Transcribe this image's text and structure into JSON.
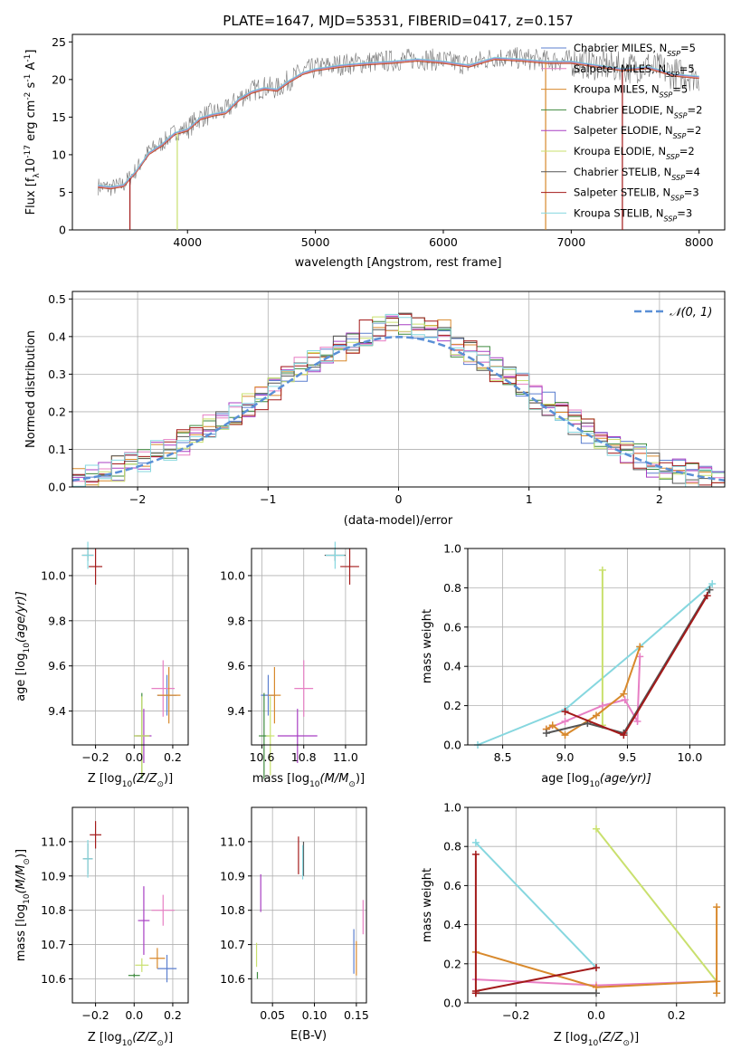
{
  "figure": {
    "title": "PLATE=1647, MJD=53531, FIBERID=0417, z=0.157"
  },
  "series_styles": [
    {
      "key": "cmiles",
      "color": "#5b7fcf"
    },
    {
      "key": "smiles",
      "color": "#e77fc4"
    },
    {
      "key": "kmiles",
      "color": "#d8892c"
    },
    {
      "key": "celodie",
      "color": "#3e8a3e"
    },
    {
      "key": "selodie",
      "color": "#a83fc3"
    },
    {
      "key": "kelodie",
      "color": "#c9e06e"
    },
    {
      "key": "cstelib",
      "color": "#555555"
    },
    {
      "key": "sstelib",
      "color": "#a31a1a"
    },
    {
      "key": "kstelib",
      "color": "#86d7df"
    }
  ],
  "chart_data": [
    {
      "id": "spectrum",
      "type": "line",
      "xlabel": "wavelength [Angstrom, rest frame]",
      "ylabel_main": "Flux [f",
      "ylabel_unit": "10",
      "ylabel_exp": "-17",
      "ylabel_rest": " erg cm",
      "ylabel_exp2": "-2",
      "ylabel_rest2": " s",
      "ylabel_exp3": "-1",
      "ylabel_rest3": " A",
      "ylabel_exp4": "-1",
      "ylabel_end": "]",
      "xlim": [
        3100,
        8200
      ],
      "ylim": [
        0,
        26
      ],
      "xticks": [
        "4000",
        "5000",
        "6000",
        "7000",
        "8000"
      ],
      "yticks": [
        "0",
        "5",
        "10",
        "15",
        "20",
        "25"
      ],
      "x": [
        3300,
        3400,
        3500,
        3600,
        3700,
        3800,
        3900,
        4000,
        4100,
        4200,
        4300,
        4400,
        4500,
        4600,
        4700,
        4800,
        4900,
        5000,
        5200,
        5400,
        5600,
        5800,
        6000,
        6200,
        6400,
        6600,
        6800,
        7000,
        7200,
        7400,
        7600,
        7800,
        8000
      ],
      "data_flux": [
        5.8,
        5.6,
        6.0,
        8.0,
        10.5,
        11.5,
        13.0,
        13.5,
        15.0,
        15.5,
        15.8,
        17.5,
        18.5,
        19.0,
        18.8,
        20.0,
        21.0,
        21.5,
        22.0,
        22.3,
        22.5,
        22.8,
        22.5,
        22.0,
        23.0,
        22.8,
        22.5,
        22.5,
        22.0,
        21.5,
        21.8,
        20.8,
        20.5
      ],
      "model_flux": [
        5.8,
        5.6,
        5.9,
        7.8,
        10.2,
        11.3,
        12.8,
        13.3,
        14.8,
        15.3,
        15.6,
        17.3,
        18.3,
        18.8,
        18.6,
        19.8,
        20.8,
        21.3,
        21.8,
        22.1,
        22.3,
        22.6,
        22.3,
        21.8,
        22.8,
        22.6,
        22.3,
        22.3,
        21.8,
        21.3,
        21.6,
        20.6,
        20.3
      ],
      "legend": [
        {
          "key": "cmiles",
          "name": "Chabrier MILES, N",
          "sub": "SSP",
          "suffix": "=5"
        },
        {
          "key": "smiles",
          "name": "Salpeter MILES, N",
          "sub": "SSP",
          "suffix": "=5"
        },
        {
          "key": "kmiles",
          "name": "Kroupa MILES, N",
          "sub": "SSP",
          "suffix": "=5"
        },
        {
          "key": "celodie",
          "name": "Chabrier ELODIE, N",
          "sub": "SSP",
          "suffix": "=2"
        },
        {
          "key": "selodie",
          "name": "Salpeter ELODIE, N",
          "sub": "SSP",
          "suffix": "=2"
        },
        {
          "key": "kelodie",
          "name": "Kroupa ELODIE, N",
          "sub": "SSP",
          "suffix": "=2"
        },
        {
          "key": "cstelib",
          "name": "Chabrier STELIB, N",
          "sub": "SSP",
          "suffix": "=4"
        },
        {
          "key": "sstelib",
          "name": "Salpeter STELIB, N",
          "sub": "SSP",
          "suffix": "=3"
        },
        {
          "key": "kstelib",
          "name": "Kroupa STELIB, N",
          "sub": "SSP",
          "suffix": "=3"
        }
      ],
      "drops": [
        {
          "x": 3550,
          "key": "sstelib"
        },
        {
          "x": 3920,
          "key": "kelodie"
        },
        {
          "x": 6800,
          "key": "kmiles"
        },
        {
          "x": 7400,
          "key": "sstelib"
        }
      ]
    },
    {
      "id": "residuals",
      "type": "area",
      "xlabel": "(data-model)/error",
      "ylabel": "Normed distribution",
      "xlim": [
        -2.5,
        2.5
      ],
      "ylim": [
        0,
        0.52
      ],
      "xticks": [
        "−2",
        "−1",
        "0",
        "1",
        "2"
      ],
      "yticks": [
        "0.0",
        "0.1",
        "0.2",
        "0.3",
        "0.4",
        "0.5"
      ],
      "legend_label": "𝒩(0, 1)",
      "bin_width": 0.1,
      "hist_base": [
        0.02,
        0.03,
        0.04,
        0.05,
        0.06,
        0.07,
        0.09,
        0.1,
        0.12,
        0.14,
        0.16,
        0.18,
        0.2,
        0.22,
        0.24,
        0.26,
        0.29,
        0.31,
        0.33,
        0.35,
        0.37,
        0.39,
        0.41,
        0.42,
        0.43,
        0.44,
        0.43,
        0.42,
        0.41,
        0.38,
        0.36,
        0.34,
        0.31,
        0.29,
        0.27,
        0.24,
        0.22,
        0.19,
        0.17,
        0.15,
        0.13,
        0.11,
        0.09,
        0.08,
        0.06,
        0.05,
        0.04,
        0.03,
        0.02,
        0.02
      ]
    },
    {
      "id": "age_vs_Z",
      "type": "scatter",
      "xlabel": "Z [log",
      "xlabel_sub": "10",
      "xlabel_mid": "(Z/Z",
      "xlabel_sub2": "⊙",
      "xlabel_end": ")]",
      "ylabel": "age  [log",
      "ylabel_sub": "10",
      "ylabel_end": "(age/yr)]",
      "xlim": [
        -0.32,
        0.28
      ],
      "ylim": [
        9.25,
        10.12
      ],
      "xticks": [
        "−0.2",
        "0.0",
        "0.2"
      ],
      "yticks": [
        "9.4",
        "9.6",
        "9.8",
        "10.0"
      ],
      "points": [
        {
          "key": "cmiles",
          "x": 0.17,
          "y": 9.47,
          "xerr": 0.1,
          "yerr": 0.18
        },
        {
          "key": "smiles",
          "x": 0.15,
          "y": 9.5,
          "xerr": 0.12,
          "yerr": 0.25
        },
        {
          "key": "kmiles",
          "x": 0.18,
          "y": 9.47,
          "xerr": 0.12,
          "yerr": 0.25
        },
        {
          "key": "celodie",
          "x": 0.04,
          "y": 9.29,
          "xerr": 0.08,
          "yerr": 0.38
        },
        {
          "key": "selodie",
          "x": 0.05,
          "y": 9.29,
          "xerr": 0.08,
          "yerr": 0.24
        },
        {
          "key": "kelodie",
          "x": 0.04,
          "y": 9.29,
          "xerr": 0.08,
          "yerr": 0.35
        },
        {
          "key": "cstelib",
          "x": -0.24,
          "y": 10.09,
          "xerr": 0.06,
          "yerr": 0.05
        },
        {
          "key": "sstelib",
          "x": -0.2,
          "y": 10.04,
          "xerr": 0.07,
          "yerr": 0.16
        },
        {
          "key": "kstelib",
          "x": -0.24,
          "y": 10.09,
          "xerr": 0.06,
          "yerr": 0.12
        }
      ]
    },
    {
      "id": "age_vs_mass",
      "type": "scatter",
      "xlabel": "mass [log",
      "xlabel_sub": "10",
      "xlabel_mid": "(M/M",
      "xlabel_sub2": "⊙",
      "xlabel_end": ")]",
      "xlim": [
        10.55,
        11.1
      ],
      "ylim": [
        9.25,
        10.12
      ],
      "xticks": [
        "10.6",
        "10.8",
        "11.0"
      ],
      "yticks": [
        "9.4",
        "9.6",
        "9.8",
        "10.0"
      ],
      "points": [
        {
          "key": "cmiles",
          "x": 10.63,
          "y": 9.47,
          "xerr": 0.07,
          "yerr": 0.18
        },
        {
          "key": "smiles",
          "x": 10.8,
          "y": 9.5,
          "xerr": 0.09,
          "yerr": 0.25
        },
        {
          "key": "kmiles",
          "x": 10.66,
          "y": 9.47,
          "xerr": 0.06,
          "yerr": 0.25
        },
        {
          "key": "celodie",
          "x": 10.61,
          "y": 9.29,
          "xerr": 0.05,
          "yerr": 0.38
        },
        {
          "key": "selodie",
          "x": 10.77,
          "y": 9.29,
          "xerr": 0.19,
          "yerr": 0.24
        },
        {
          "key": "kelodie",
          "x": 10.64,
          "y": 9.29,
          "xerr": 0.04,
          "yerr": 0.35
        },
        {
          "key": "cstelib",
          "x": 10.95,
          "y": 10.09,
          "xerr": 0.1,
          "yerr": 0.05
        },
        {
          "key": "sstelib",
          "x": 11.02,
          "y": 10.04,
          "xerr": 0.09,
          "yerr": 0.16
        },
        {
          "key": "kstelib",
          "x": 10.95,
          "y": 10.09,
          "xerr": 0.09,
          "yerr": 0.12
        }
      ]
    },
    {
      "id": "massweight_vs_age",
      "type": "line",
      "xlabel": "age  [log",
      "xlabel_sub": "10",
      "xlabel_end": "(age/yr)]",
      "ylabel": "mass weight",
      "xlim": [
        8.22,
        10.28
      ],
      "ylim": [
        0,
        1
      ],
      "xticks": [
        "8.5",
        "9.0",
        "9.5",
        "10.0"
      ],
      "yticks": [
        "0.0",
        "0.2",
        "0.4",
        "0.6",
        "0.8",
        "1.0"
      ],
      "series": [
        {
          "key": "kstelib",
          "x": [
            8.3,
            9.0,
            9.6,
            10.18
          ],
          "y": [
            0.0,
            0.18,
            0.5,
            0.82
          ]
        },
        {
          "key": "kelodie",
          "x": [
            9.3,
            9.3
          ],
          "y": [
            0.1,
            0.89
          ]
        },
        {
          "key": "smiles",
          "x": [
            8.85,
            9.0,
            9.3,
            9.48,
            9.58,
            9.6
          ],
          "y": [
            0.08,
            0.12,
            0.2,
            0.23,
            0.12,
            0.45
          ]
        },
        {
          "key": "kmiles",
          "x": [
            8.85,
            8.9,
            9.0,
            9.25,
            9.47,
            9.6
          ],
          "y": [
            0.08,
            0.1,
            0.05,
            0.15,
            0.26,
            0.5
          ]
        },
        {
          "key": "cstelib",
          "x": [
            8.85,
            9.18,
            9.47,
            10.16
          ],
          "y": [
            0.06,
            0.11,
            0.06,
            0.79
          ]
        },
        {
          "key": "sstelib",
          "x": [
            9.0,
            9.47,
            10.14
          ],
          "y": [
            0.17,
            0.05,
            0.76
          ]
        }
      ]
    },
    {
      "id": "mass_vs_Z",
      "type": "scatter",
      "xlabel": "Z [log",
      "xlabel_sub": "10",
      "xlabel_mid": "(Z/Z",
      "xlabel_sub2": "⊙",
      "xlabel_end": ")]",
      "ylabel": "mass [log",
      "ylabel_sub": "10",
      "ylabel_mid": "(M/M",
      "ylabel_sub2": "⊙",
      "ylabel_end": ")]",
      "xlim": [
        -0.32,
        0.28
      ],
      "ylim": [
        10.53,
        11.1
      ],
      "xticks": [
        "−0.2",
        "0.0",
        "0.2"
      ],
      "yticks": [
        "10.6",
        "10.7",
        "10.8",
        "10.9",
        "11.0"
      ],
      "points": [
        {
          "key": "cmiles",
          "x": 0.17,
          "y": 10.63,
          "xerr": 0.1,
          "yerr": 0.08
        },
        {
          "key": "smiles",
          "x": 0.15,
          "y": 10.8,
          "xerr": 0.12,
          "yerr": 0.09
        },
        {
          "key": "kmiles",
          "x": 0.12,
          "y": 10.66,
          "xerr": 0.08,
          "yerr": 0.06
        },
        {
          "key": "celodie",
          "x": 0.0,
          "y": 10.61,
          "xerr": 0.06,
          "yerr": 0.01
        },
        {
          "key": "selodie",
          "x": 0.05,
          "y": 10.77,
          "xerr": 0.06,
          "yerr": 0.2
        },
        {
          "key": "kelodie",
          "x": 0.04,
          "y": 10.64,
          "xerr": 0.07,
          "yerr": 0.04
        },
        {
          "key": "cstelib",
          "x": -0.24,
          "y": 10.95,
          "xerr": 0.05,
          "yerr": 0.09
        },
        {
          "key": "sstelib",
          "x": -0.2,
          "y": 11.02,
          "xerr": 0.06,
          "yerr": 0.08
        },
        {
          "key": "kstelib",
          "x": -0.24,
          "y": 10.95,
          "xerr": 0.05,
          "yerr": 0.11
        }
      ]
    },
    {
      "id": "mass_vs_ebv",
      "type": "scatter",
      "xlabel": "E(B-V)",
      "xlim": [
        0.025,
        0.162
      ],
      "ylim": [
        10.53,
        11.1
      ],
      "xticks": [
        "0.05",
        "0.10",
        "0.15"
      ],
      "yticks": [
        "10.6",
        "10.7",
        "10.8",
        "10.9",
        "11.0"
      ],
      "points": [
        {
          "key": "cmiles",
          "x": 0.147,
          "y": 10.68,
          "xerr": 0.0,
          "yerr": 0.13
        },
        {
          "key": "smiles",
          "x": 0.158,
          "y": 10.78,
          "xerr": 0.0,
          "yerr": 0.1
        },
        {
          "key": "kmiles",
          "x": 0.15,
          "y": 10.66,
          "xerr": 0.0,
          "yerr": 0.1
        },
        {
          "key": "celodie",
          "x": 0.032,
          "y": 10.61,
          "xerr": 0.0,
          "yerr": 0.02
        },
        {
          "key": "selodie",
          "x": 0.036,
          "y": 10.85,
          "xerr": 0.0,
          "yerr": 0.11
        },
        {
          "key": "kelodie",
          "x": 0.031,
          "y": 10.67,
          "xerr": 0.0,
          "yerr": 0.07
        },
        {
          "key": "cstelib",
          "x": 0.087,
          "y": 10.95,
          "xerr": 0.0,
          "yerr": 0.1
        },
        {
          "key": "sstelib",
          "x": 0.081,
          "y": 10.96,
          "xerr": 0.0,
          "yerr": 0.11
        },
        {
          "key": "kstelib",
          "x": 0.086,
          "y": 10.94,
          "xerr": 0.0,
          "yerr": 0.1
        }
      ]
    },
    {
      "id": "massweight_vs_Z",
      "type": "line",
      "xlabel": "Z [log",
      "xlabel_sub": "10",
      "xlabel_mid": "(Z/Z",
      "xlabel_sub2": "⊙",
      "xlabel_end": ")]",
      "ylabel": "mass weight",
      "xlim": [
        -0.32,
        0.32
      ],
      "ylim": [
        0,
        1
      ],
      "xticks": [
        "−0.2",
        "0.0",
        "0.2"
      ],
      "yticks": [
        "0.0",
        "0.2",
        "0.4",
        "0.6",
        "0.8",
        "1.0"
      ],
      "series": [
        {
          "key": "kstelib",
          "x": [
            -0.3,
            0.0
          ],
          "y": [
            0.82,
            0.18
          ]
        },
        {
          "key": "kelodie",
          "x": [
            0.0,
            0.3
          ],
          "y": [
            0.89,
            0.11
          ]
        },
        {
          "key": "smiles",
          "x": [
            -0.3,
            0.0,
            0.3
          ],
          "y": [
            0.12,
            0.09,
            0.11
          ]
        },
        {
          "key": "kmiles",
          "x": [
            -0.3,
            0.0,
            0.3
          ],
          "y": [
            0.26,
            0.08,
            0.11
          ]
        },
        {
          "key": "cstelib",
          "x": [
            -0.3,
            0.0
          ],
          "y": [
            0.05,
            0.05
          ]
        },
        {
          "key": "sstelib",
          "x": [
            -0.3,
            0.0
          ],
          "y": [
            0.06,
            0.18
          ]
        },
        {
          "key": "sstelib",
          "x": [
            -0.3,
            -0.3
          ],
          "y": [
            0.05,
            0.76
          ]
        },
        {
          "key": "kmiles",
          "x": [
            0.3,
            0.3
          ],
          "y": [
            0.05,
            0.49
          ]
        }
      ]
    }
  ]
}
